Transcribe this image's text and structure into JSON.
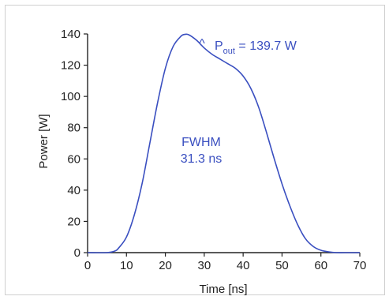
{
  "chart_data": {
    "type": "line",
    "xlabel": "Time [ns]",
    "ylabel": "Power [W]",
    "xlim": [
      0,
      70
    ],
    "ylim": [
      0,
      140
    ],
    "x_ticks": [
      0,
      10,
      20,
      30,
      40,
      50,
      60,
      70
    ],
    "y_ticks": [
      0,
      20,
      40,
      60,
      80,
      100,
      120,
      140
    ],
    "grid": false,
    "line_color": "#3a4fc0",
    "series": [
      {
        "x": [
          0,
          5,
          7,
          8,
          10,
          12,
          14,
          16,
          18,
          20,
          22,
          24,
          25,
          26,
          28,
          30,
          32,
          34,
          36,
          38,
          40,
          42,
          44,
          46,
          48,
          50,
          52,
          54,
          56,
          58,
          60,
          62,
          64,
          66,
          68,
          70
        ],
        "y": [
          0,
          0,
          1,
          3,
          10,
          24,
          44,
          70,
          96,
          118,
          132,
          138.5,
          139.7,
          139.5,
          136,
          131,
          127,
          124,
          121,
          118,
          113,
          105,
          93,
          77,
          60,
          44,
          30,
          18,
          9,
          4,
          1.5,
          0.5,
          0,
          0,
          0,
          0
        ]
      }
    ],
    "annotations": {
      "peak": {
        "symbol": "P",
        "subscript": "out",
        "value": " = 139.7 W"
      },
      "fwhm": {
        "line1": "FWHM",
        "line2": "31.3 ns"
      }
    }
  }
}
